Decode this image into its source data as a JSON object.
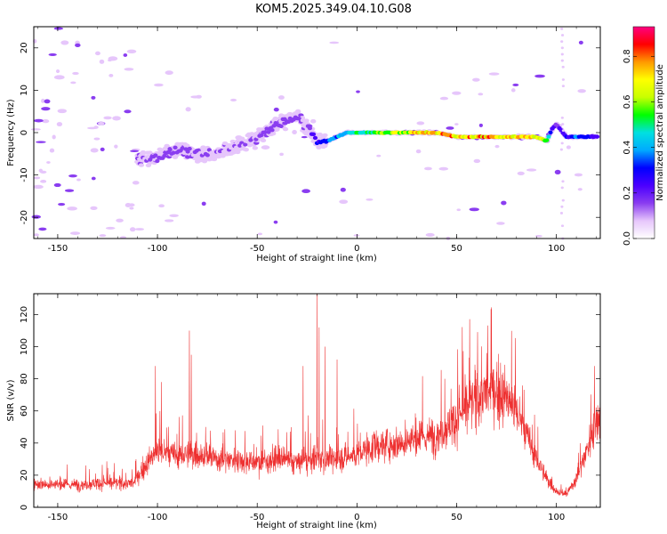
{
  "title": "KOM5.2025.349.04.10.G08",
  "colors": {
    "snr_line": "#ee3030",
    "colormap": [
      "#ffffff",
      "#e6c6fb",
      "#8a3df0",
      "#4b00ff",
      "#0000ff",
      "#00aaff",
      "#00e0e0",
      "#00ff00",
      "#c8ff00",
      "#ffff00",
      "#ff9900",
      "#ff0000",
      "#ff0080"
    ]
  },
  "chart_data": [
    {
      "type": "heatmap",
      "xlabel": "Height of straight line (km)",
      "ylabel": "Frequency (Hz)",
      "xlim": [
        -162,
        122
      ],
      "ylim": [
        -25,
        25
      ],
      "xticks": [
        -150,
        -100,
        -50,
        0,
        50,
        100
      ],
      "yticks": [
        -20,
        -10,
        0,
        10,
        20
      ],
      "colorbar": {
        "label": "Normalized spectral amplitude",
        "range": [
          0,
          0.93
        ],
        "ticks": [
          0.0,
          0.2,
          0.4,
          0.6,
          0.8
        ],
        "tick_labels": [
          "0.0",
          "0.2",
          "0.4",
          "0.6",
          "0.8"
        ]
      },
      "ridge": {
        "x": [
          -110,
          -100,
          -90,
          -80,
          -70,
          -60,
          -50,
          -40,
          -35,
          -30,
          -25,
          -20,
          -15,
          -10,
          -5,
          0,
          10,
          20,
          30,
          40,
          50,
          60,
          70,
          80,
          90,
          95,
          98,
          100,
          105,
          110,
          115,
          120
        ],
        "y": [
          -6,
          -6,
          -4,
          -5,
          -5,
          -3,
          -1,
          2,
          3,
          4,
          1,
          -2,
          -2,
          -1,
          0,
          0,
          0,
          0,
          0,
          0,
          -1,
          -1,
          -1,
          -1,
          -1,
          -2,
          1,
          2,
          -1,
          -1,
          -1,
          -1
        ],
        "amplitude": [
          0.12,
          0.15,
          0.14,
          0.12,
          0.13,
          0.12,
          0.12,
          0.15,
          0.18,
          0.15,
          0.12,
          0.3,
          0.35,
          0.4,
          0.45,
          0.5,
          0.6,
          0.65,
          0.7,
          0.75,
          0.75,
          0.8,
          0.8,
          0.75,
          0.7,
          0.55,
          0.25,
          0.2,
          0.3,
          0.35,
          0.3,
          0.25
        ]
      }
    },
    {
      "type": "line",
      "xlabel": "Height of straight line (km)",
      "ylabel": "SNR (v/v)",
      "xlim": [
        -162,
        122
      ],
      "ylim": [
        0,
        133
      ],
      "xticks": [
        -150,
        -100,
        -50,
        0,
        50,
        100
      ],
      "yticks": [
        0,
        20,
        40,
        60,
        80,
        100,
        120
      ],
      "envelope": {
        "x": [
          -162,
          -150,
          -140,
          -130,
          -120,
          -112,
          -105,
          -100,
          -90,
          -80,
          -70,
          -60,
          -50,
          -40,
          -30,
          -20,
          -10,
          0,
          10,
          20,
          30,
          40,
          50,
          55,
          60,
          65,
          70,
          75,
          80,
          85,
          90,
          95,
          100,
          105,
          110,
          115,
          120,
          122
        ],
        "y": [
          15,
          14,
          14,
          15,
          15,
          15,
          28,
          35,
          32,
          33,
          30,
          30,
          28,
          30,
          28,
          30,
          30,
          33,
          38,
          40,
          42,
          45,
          55,
          62,
          68,
          72,
          72,
          68,
          60,
          45,
          30,
          18,
          10,
          8,
          18,
          35,
          55,
          60
        ]
      },
      "spikes": [
        {
          "x": -101,
          "y": 88
        },
        {
          "x": -98,
          "y": 78
        },
        {
          "x": -84,
          "y": 110
        },
        {
          "x": -83,
          "y": 95
        },
        {
          "x": -27,
          "y": 88
        },
        {
          "x": -20,
          "y": 133
        },
        {
          "x": -19,
          "y": 112
        },
        {
          "x": -16,
          "y": 100
        },
        {
          "x": -10,
          "y": 92
        },
        {
          "x": 65,
          "y": 96
        },
        {
          "x": 72,
          "y": 90
        },
        {
          "x": 119,
          "y": 88
        }
      ]
    }
  ]
}
